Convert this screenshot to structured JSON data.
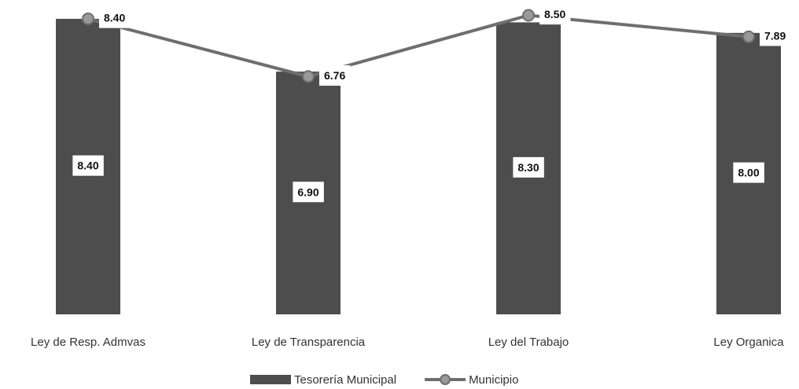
{
  "chart_data": {
    "type": "combo",
    "categories": [
      "Ley de Resp. Admvas",
      "Ley de Transparencia",
      "Ley del Trabajo",
      "Ley Organica"
    ],
    "ylim": [
      0,
      8.6
    ],
    "series": [
      {
        "name": "Tesorería Municipal",
        "type": "bar",
        "color": "#4d4d4d",
        "values": [
          8.4,
          6.9,
          8.3,
          8.0
        ],
        "value_labels": [
          "8.40",
          "6.90",
          "8.30",
          "8.00"
        ]
      },
      {
        "name": "Municipio",
        "type": "line",
        "color": "#6e6e6e",
        "values": [
          8.4,
          6.76,
          8.5,
          7.89
        ],
        "value_labels": [
          "8.40",
          "6.76",
          "8.50",
          "7.89"
        ]
      }
    ]
  }
}
